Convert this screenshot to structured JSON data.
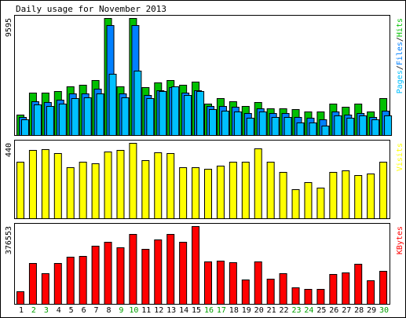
{
  "chart_data": [
    {
      "type": "bar",
      "title": "Daily usage for November 2013",
      "categories": [
        "1",
        "2",
        "3",
        "4",
        "5",
        "6",
        "7",
        "8",
        "9",
        "10",
        "11",
        "12",
        "13",
        "14",
        "15",
        "16",
        "17",
        "18",
        "19",
        "20",
        "21",
        "22",
        "23",
        "24",
        "25",
        "26",
        "27",
        "28",
        "29",
        "30"
      ],
      "weekend_days": [
        "2",
        "3",
        "9",
        "10",
        "16",
        "17",
        "23",
        "24",
        "30"
      ],
      "ymax_label": "9595",
      "ylim": [
        0,
        9595
      ],
      "legend": [
        "Pages",
        "Files",
        "Hits"
      ],
      "series": [
        {
          "name": "Hits",
          "color": "#00c000",
          "values": [
            1700,
            3500,
            3500,
            3600,
            4000,
            4100,
            4500,
            9595,
            4000,
            9595,
            3900,
            4300,
            4500,
            4100,
            4400,
            2600,
            3000,
            2800,
            2400,
            2700,
            2200,
            2200,
            2100,
            1900,
            1900,
            2600,
            2300,
            2600,
            1900,
            3000
          ]
        },
        {
          "name": "Files",
          "color": "#0080ff",
          "values": [
            1500,
            2800,
            2700,
            2900,
            3400,
            3400,
            3800,
            9000,
            3400,
            9000,
            3300,
            3700,
            3900,
            3500,
            3700,
            2400,
            2400,
            2300,
            1800,
            2200,
            1800,
            1800,
            1500,
            1400,
            1300,
            1900,
            1700,
            1800,
            1500,
            2000
          ]
        },
        {
          "name": "Pages",
          "color": "#00c0ff",
          "values": [
            1300,
            2500,
            2400,
            2600,
            3000,
            3100,
            3400,
            5000,
            3100,
            5300,
            3000,
            3600,
            4000,
            3300,
            3600,
            2100,
            2000,
            1900,
            1400,
            1900,
            1500,
            1500,
            1000,
            1000,
            800,
            1600,
            1400,
            1600,
            1300,
            1600
          ]
        }
      ]
    },
    {
      "type": "bar",
      "ymax_label": "440",
      "ylim": [
        0,
        440
      ],
      "legend": [
        "Visits"
      ],
      "series": [
        {
          "name": "Visits",
          "color": "#ffff00",
          "values": [
            330,
            400,
            405,
            380,
            300,
            330,
            320,
            390,
            400,
            440,
            340,
            385,
            380,
            300,
            300,
            290,
            305,
            330,
            330,
            410,
            330,
            270,
            170,
            210,
            180,
            270,
            280,
            250,
            260,
            330
          ]
        }
      ]
    },
    {
      "type": "bar",
      "ymax_label": "376553",
      "ylim": [
        0,
        376553
      ],
      "legend": [
        "KBytes"
      ],
      "series": [
        {
          "name": "KBytes",
          "color": "#ff0000",
          "values": [
            62000,
            196000,
            149000,
            198000,
            227000,
            232000,
            280000,
            300000,
            275000,
            340000,
            265000,
            313000,
            340000,
            300000,
            376553,
            206000,
            209000,
            202000,
            118000,
            205000,
            123000,
            150000,
            80000,
            72000,
            72000,
            143000,
            151000,
            193000,
            114000,
            158000
          ]
        }
      ]
    }
  ]
}
